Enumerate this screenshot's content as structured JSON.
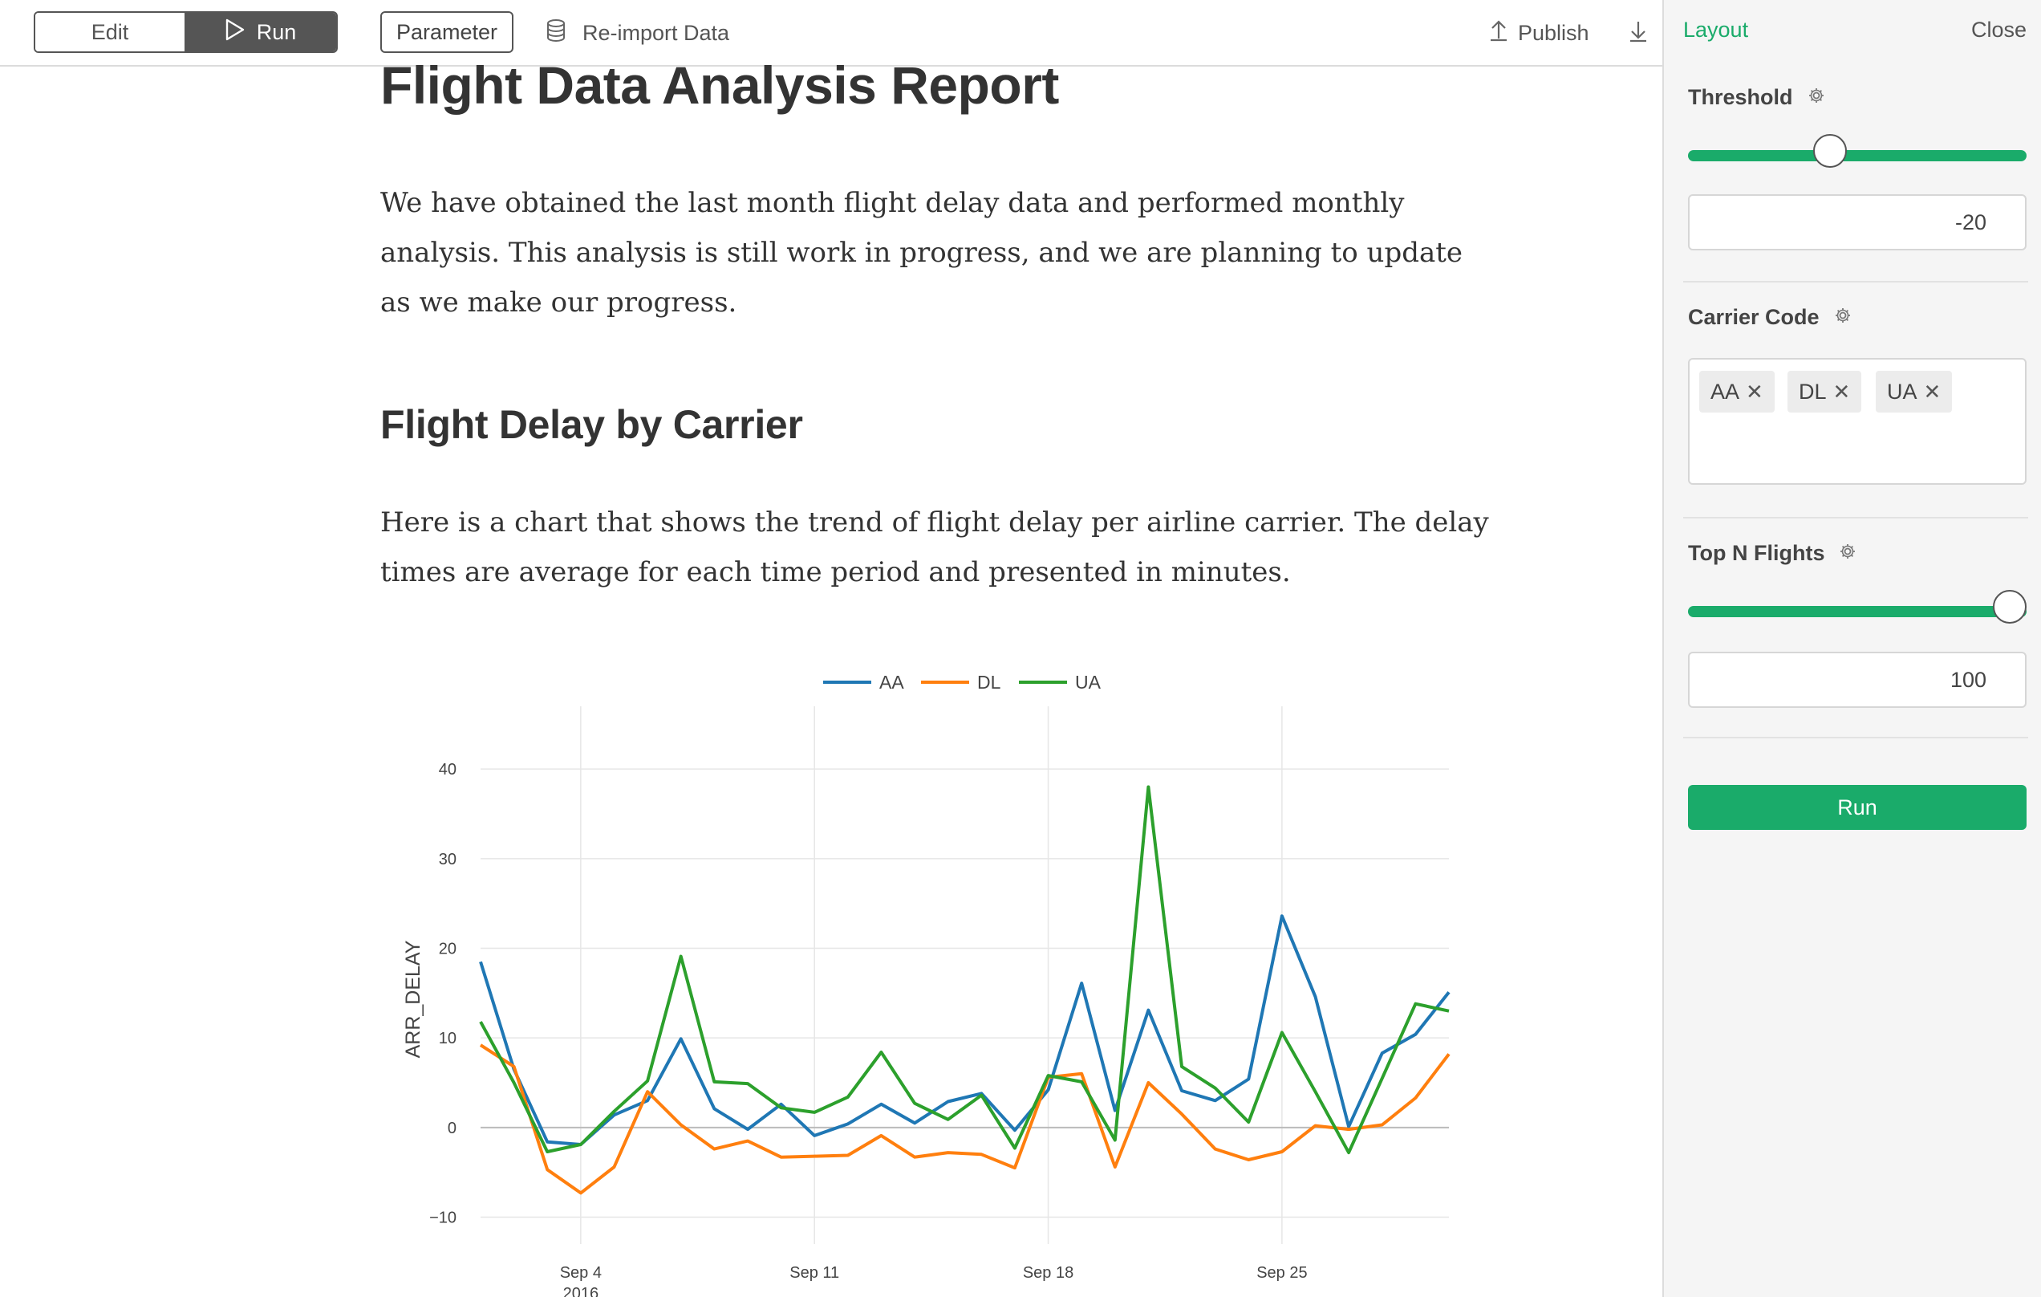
{
  "toolbar": {
    "edit_label": "Edit",
    "run_label": "Run",
    "parameter_label": "Parameter",
    "reimport_label": "Re-import Data",
    "publish_label": "Publish"
  },
  "document": {
    "title": "Flight Data Analysis Report",
    "intro": "We have obtained the last month flight delay data and performed monthly analysis. This analysis is still work in progress, and we are planning to update as we make our progress.",
    "section_heading": "Flight Delay by Carrier",
    "section_text": "Here is a chart that shows the trend of flight delay per airline carrier. The delay times are average for each time period and presented in minutes."
  },
  "panel": {
    "tab_layout": "Layout",
    "close_label": "Close",
    "threshold": {
      "label": "Threshold",
      "value": "-20",
      "slider_fraction": 0.41
    },
    "carrier_code": {
      "label": "Carrier Code",
      "tags": [
        "AA",
        "DL",
        "UA"
      ]
    },
    "top_n": {
      "label": "Top N Flights",
      "value": "100",
      "slider_fraction": 1.0
    },
    "run_label": "Run"
  },
  "colors": {
    "accent": "#1aab6a",
    "AA": "#1f77b4",
    "DL": "#ff7f0e",
    "UA": "#2ca02c"
  },
  "chart_data": {
    "type": "line",
    "title": "",
    "xlabel": "",
    "ylabel": "ARR_DELAY",
    "x": [
      "2016-09-01",
      "2016-09-02",
      "2016-09-03",
      "2016-09-04",
      "2016-09-05",
      "2016-09-06",
      "2016-09-07",
      "2016-09-08",
      "2016-09-09",
      "2016-09-10",
      "2016-09-11",
      "2016-09-12",
      "2016-09-13",
      "2016-09-14",
      "2016-09-15",
      "2016-09-16",
      "2016-09-17",
      "2016-09-18",
      "2016-09-19",
      "2016-09-20",
      "2016-09-21",
      "2016-09-22",
      "2016-09-23",
      "2016-09-24",
      "2016-09-25",
      "2016-09-26",
      "2016-09-27",
      "2016-09-28",
      "2016-09-29",
      "2016-09-30"
    ],
    "x_ticks": [
      {
        "date": "2016-09-04",
        "label": "Sep 4",
        "sublabel": "2016"
      },
      {
        "date": "2016-09-11",
        "label": "Sep 11"
      },
      {
        "date": "2016-09-18",
        "label": "Sep 18"
      },
      {
        "date": "2016-09-25",
        "label": "Sep 25"
      }
    ],
    "y_ticks": [
      -10,
      0,
      10,
      20,
      30,
      40
    ],
    "y_tick_labels": [
      "−10",
      "0",
      "10",
      "20",
      "30",
      "40"
    ],
    "ylim": [
      -13,
      47
    ],
    "legend_position": "top-center",
    "grid": true,
    "series": [
      {
        "name": "AA",
        "values": [
          18.5,
          6.5,
          -1.6,
          -1.9,
          1.4,
          3.0,
          9.9,
          2.1,
          -0.2,
          2.6,
          -0.9,
          0.4,
          2.6,
          0.5,
          2.9,
          3.8,
          -0.3,
          4.2,
          16.1,
          1.9,
          13.1,
          4.1,
          3.0,
          5.4,
          23.6,
          14.6,
          0.1,
          8.3,
          10.4,
          15.1
        ]
      },
      {
        "name": "DL",
        "values": [
          9.2,
          6.8,
          -4.7,
          -7.3,
          -4.4,
          4.0,
          0.3,
          -2.4,
          -1.5,
          -3.3,
          -3.2,
          -3.1,
          -0.9,
          -3.3,
          -2.8,
          -3.0,
          -4.5,
          5.6,
          6.0,
          -4.4,
          5.0,
          1.5,
          -2.4,
          -3.6,
          -2.7,
          0.2,
          -0.2,
          0.3,
          3.3,
          8.2
        ]
      },
      {
        "name": "UA",
        "values": [
          11.8,
          5.0,
          -2.7,
          -1.9,
          1.8,
          5.2,
          19.1,
          5.1,
          4.9,
          2.2,
          1.7,
          3.4,
          8.4,
          2.7,
          0.9,
          3.6,
          -2.3,
          5.8,
          5.1,
          -1.4,
          38.0,
          6.8,
          4.4,
          0.6,
          10.6,
          4.0,
          -2.8,
          5.5,
          13.8,
          13.0
        ]
      }
    ]
  }
}
